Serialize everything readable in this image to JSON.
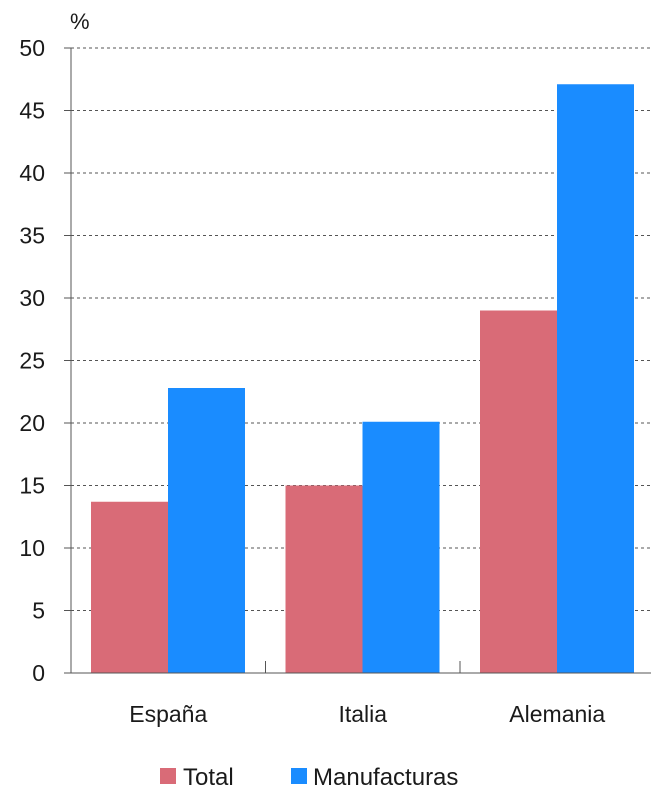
{
  "chart_data": {
    "type": "bar",
    "unit_label": "%",
    "categories": [
      "España",
      "Italia",
      "Alemania"
    ],
    "series": [
      {
        "name": "Total",
        "color": "#d96b77",
        "values": [
          13.7,
          15.0,
          29.0
        ]
      },
      {
        "name": "Manufacturas",
        "color": "#1a8cff",
        "values": [
          22.8,
          20.1,
          47.1
        ]
      }
    ],
    "ylim": [
      0,
      50
    ],
    "yticks": [
      0,
      5,
      10,
      15,
      20,
      25,
      30,
      35,
      40,
      45,
      50
    ],
    "grid": true,
    "legend_position": "bottom"
  }
}
